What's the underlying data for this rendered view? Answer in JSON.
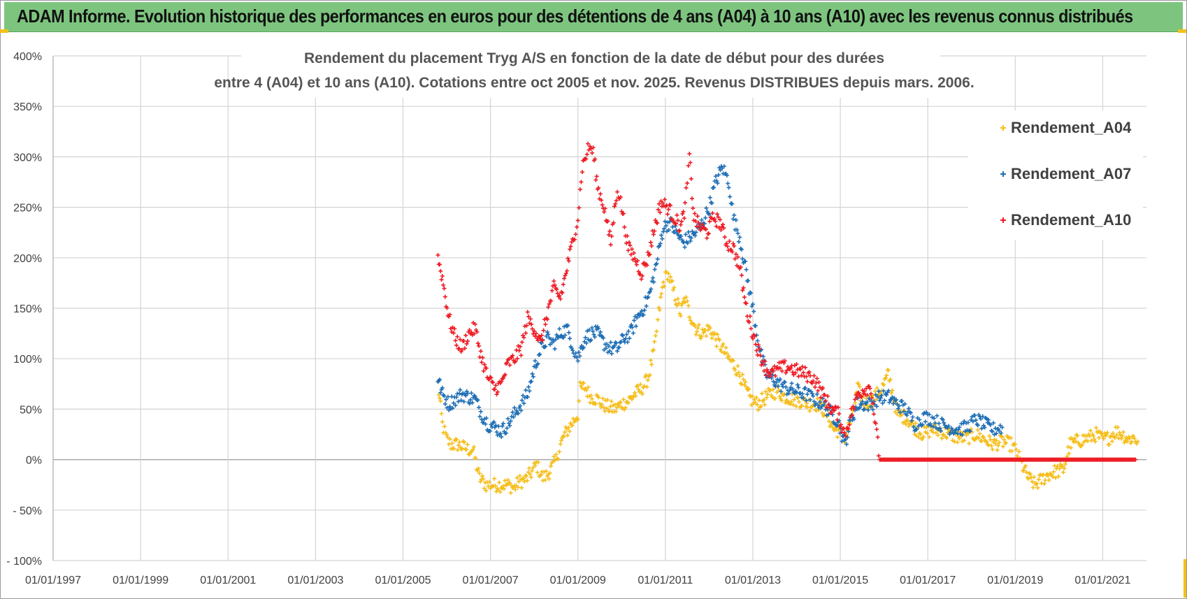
{
  "banner": {
    "title": "ADAM Informe. Evolution historique des performances en euros pour des détentions de 4 ans (A04) à 10 ans (A10) avec les revenus connus distribués"
  },
  "chart_data": {
    "type": "scatter",
    "title_line1": "Rendement du placement Tryg A/S en fonction de la date de début pour des durées",
    "title_line2": "entre 4 (A04) et 10 ans (A10). Cotations entre oct 2005 et nov. 2025. Revenus DISTRIBUES depuis mars. 2006.",
    "xlabel": "",
    "ylabel": "",
    "xlim": [
      1997.0,
      2022.0
    ],
    "ylim": [
      -100,
      400
    ],
    "x_ticks": [
      {
        "value": 1997,
        "label": "01/01/1997"
      },
      {
        "value": 1999,
        "label": "01/01/1999"
      },
      {
        "value": 2001,
        "label": "01/01/2001"
      },
      {
        "value": 2003,
        "label": "01/01/2003"
      },
      {
        "value": 2005,
        "label": "01/01/2005"
      },
      {
        "value": 2007,
        "label": "01/01/2007"
      },
      {
        "value": 2009,
        "label": "01/01/2009"
      },
      {
        "value": 2011,
        "label": "01/01/2011"
      },
      {
        "value": 2013,
        "label": "01/01/2013"
      },
      {
        "value": 2015,
        "label": "01/01/2015"
      },
      {
        "value": 2017,
        "label": "01/01/2017"
      },
      {
        "value": 2019,
        "label": "01/01/2019"
      },
      {
        "value": 2021,
        "label": "01/01/2021"
      }
    ],
    "y_ticks": [
      {
        "value": 400,
        "label": "400%"
      },
      {
        "value": 350,
        "label": "350%"
      },
      {
        "value": 300,
        "label": "300%"
      },
      {
        "value": 250,
        "label": "250%"
      },
      {
        "value": 200,
        "label": "200%"
      },
      {
        "value": 150,
        "label": "150%"
      },
      {
        "value": 100,
        "label": "100%"
      },
      {
        "value": 50,
        "label": "50%"
      },
      {
        "value": 0,
        "label": "0%"
      },
      {
        "value": -50,
        "label": "- 50%"
      },
      {
        "value": -100,
        "label": "- 100%"
      }
    ],
    "grid": true,
    "legend_position": "top-right",
    "series": [
      {
        "name": "Rendement_A04",
        "color": "#f5be1b",
        "points": [
          [
            2005.8,
            75
          ],
          [
            2005.9,
            35
          ],
          [
            2006.0,
            20
          ],
          [
            2006.1,
            15
          ],
          [
            2006.25,
            15
          ],
          [
            2006.4,
            12
          ],
          [
            2006.5,
            10
          ],
          [
            2006.6,
            10
          ],
          [
            2006.75,
            -18
          ],
          [
            2006.9,
            -25
          ],
          [
            2007.0,
            -25
          ],
          [
            2007.2,
            -25
          ],
          [
            2007.4,
            -25
          ],
          [
            2007.55,
            -28
          ],
          [
            2007.65,
            -22
          ],
          [
            2007.8,
            -20
          ],
          [
            2007.95,
            -12
          ],
          [
            2008.05,
            -5
          ],
          [
            2008.2,
            -18
          ],
          [
            2008.3,
            -15
          ],
          [
            2008.4,
            -8
          ],
          [
            2008.5,
            0
          ],
          [
            2008.6,
            15
          ],
          [
            2008.7,
            25
          ],
          [
            2008.85,
            35
          ],
          [
            2009.0,
            45
          ],
          [
            2009.05,
            70
          ],
          [
            2009.15,
            72
          ],
          [
            2009.3,
            62
          ],
          [
            2009.45,
            60
          ],
          [
            2009.55,
            55
          ],
          [
            2009.7,
            52
          ],
          [
            2009.85,
            50
          ],
          [
            2010.0,
            55
          ],
          [
            2010.15,
            58
          ],
          [
            2010.3,
            65
          ],
          [
            2010.45,
            70
          ],
          [
            2010.6,
            80
          ],
          [
            2010.75,
            110
          ],
          [
            2010.85,
            145
          ],
          [
            2010.95,
            175
          ],
          [
            2011.05,
            185
          ],
          [
            2011.2,
            165
          ],
          [
            2011.35,
            145
          ],
          [
            2011.45,
            160
          ],
          [
            2011.55,
            145
          ],
          [
            2011.7,
            130
          ],
          [
            2011.85,
            125
          ],
          [
            2012.0,
            130
          ],
          [
            2012.15,
            120
          ],
          [
            2012.3,
            110
          ],
          [
            2012.45,
            100
          ],
          [
            2012.55,
            95
          ],
          [
            2012.7,
            85
          ],
          [
            2012.85,
            68
          ],
          [
            2012.95,
            60
          ],
          [
            2013.1,
            55
          ],
          [
            2013.25,
            60
          ],
          [
            2013.4,
            65
          ],
          [
            2013.55,
            68
          ],
          [
            2013.7,
            63
          ],
          [
            2013.9,
            60
          ],
          [
            2014.1,
            58
          ],
          [
            2014.3,
            55
          ],
          [
            2014.5,
            55
          ],
          [
            2014.7,
            45
          ],
          [
            2014.85,
            30
          ],
          [
            2015.0,
            28
          ],
          [
            2015.1,
            22
          ],
          [
            2015.25,
            40
          ],
          [
            2015.4,
            70
          ],
          [
            2015.55,
            55
          ],
          [
            2015.75,
            60
          ],
          [
            2015.95,
            70
          ],
          [
            2016.1,
            85
          ],
          [
            2016.3,
            45
          ],
          [
            2016.5,
            42
          ],
          [
            2016.7,
            32
          ],
          [
            2016.9,
            25
          ],
          [
            2017.1,
            30
          ],
          [
            2017.3,
            28
          ],
          [
            2017.5,
            25
          ],
          [
            2017.7,
            22
          ],
          [
            2017.9,
            22
          ],
          [
            2018.1,
            25
          ],
          [
            2018.3,
            20
          ],
          [
            2018.5,
            15
          ],
          [
            2018.7,
            18
          ],
          [
            2018.9,
            15
          ],
          [
            2019.0,
            10
          ],
          [
            2019.15,
            -5
          ],
          [
            2019.3,
            -18
          ],
          [
            2019.45,
            -25
          ],
          [
            2019.6,
            -20
          ],
          [
            2019.75,
            -15
          ],
          [
            2019.9,
            -12
          ],
          [
            2020.1,
            -10
          ],
          [
            2020.25,
            15
          ],
          [
            2020.4,
            18
          ],
          [
            2020.55,
            20
          ],
          [
            2020.7,
            22
          ],
          [
            2020.85,
            25
          ],
          [
            2021.0,
            20
          ],
          [
            2021.15,
            22
          ],
          [
            2021.3,
            28
          ],
          [
            2021.45,
            25
          ],
          [
            2021.6,
            20
          ],
          [
            2021.7,
            22
          ],
          [
            2021.8,
            18
          ]
        ]
      },
      {
        "name": "Rendement_A07",
        "color": "#1f6fb5",
        "points": [
          [
            2005.8,
            80
          ],
          [
            2005.9,
            65
          ],
          [
            2006.05,
            55
          ],
          [
            2006.2,
            60
          ],
          [
            2006.35,
            65
          ],
          [
            2006.5,
            62
          ],
          [
            2006.65,
            60
          ],
          [
            2006.8,
            45
          ],
          [
            2006.95,
            35
          ],
          [
            2007.1,
            32
          ],
          [
            2007.25,
            28
          ],
          [
            2007.4,
            35
          ],
          [
            2007.55,
            45
          ],
          [
            2007.7,
            55
          ],
          [
            2007.85,
            65
          ],
          [
            2008.0,
            90
          ],
          [
            2008.15,
            110
          ],
          [
            2008.3,
            120
          ],
          [
            2008.45,
            115
          ],
          [
            2008.6,
            125
          ],
          [
            2008.75,
            130
          ],
          [
            2008.9,
            110
          ],
          [
            2009.0,
            100
          ],
          [
            2009.15,
            120
          ],
          [
            2009.3,
            125
          ],
          [
            2009.45,
            125
          ],
          [
            2009.6,
            115
          ],
          [
            2009.75,
            110
          ],
          [
            2009.9,
            110
          ],
          [
            2010.05,
            120
          ],
          [
            2010.2,
            125
          ],
          [
            2010.35,
            140
          ],
          [
            2010.5,
            150
          ],
          [
            2010.65,
            165
          ],
          [
            2010.8,
            195
          ],
          [
            2010.95,
            230
          ],
          [
            2011.1,
            235
          ],
          [
            2011.25,
            225
          ],
          [
            2011.4,
            215
          ],
          [
            2011.55,
            220
          ],
          [
            2011.7,
            225
          ],
          [
            2011.85,
            235
          ],
          [
            2012.0,
            250
          ],
          [
            2012.15,
            275
          ],
          [
            2012.3,
            290
          ],
          [
            2012.45,
            275
          ],
          [
            2012.55,
            240
          ],
          [
            2012.7,
            220
          ],
          [
            2012.85,
            185
          ],
          [
            2013.0,
            150
          ],
          [
            2013.15,
            110
          ],
          [
            2013.3,
            85
          ],
          [
            2013.45,
            80
          ],
          [
            2013.6,
            75
          ],
          [
            2013.8,
            70
          ],
          [
            2014.0,
            68
          ],
          [
            2014.2,
            65
          ],
          [
            2014.4,
            60
          ],
          [
            2014.6,
            55
          ],
          [
            2014.8,
            45
          ],
          [
            2014.95,
            38
          ],
          [
            2015.1,
            15
          ],
          [
            2015.25,
            40
          ],
          [
            2015.4,
            55
          ],
          [
            2015.55,
            55
          ],
          [
            2015.7,
            55
          ],
          [
            2015.9,
            62
          ],
          [
            2016.1,
            62
          ],
          [
            2016.3,
            55
          ],
          [
            2016.5,
            50
          ],
          [
            2016.7,
            35
          ],
          [
            2016.9,
            42
          ],
          [
            2017.1,
            40
          ],
          [
            2017.3,
            35
          ],
          [
            2017.5,
            32
          ],
          [
            2017.7,
            30
          ],
          [
            2017.9,
            32
          ],
          [
            2018.1,
            40
          ],
          [
            2018.3,
            35
          ],
          [
            2018.5,
            30
          ],
          [
            2018.7,
            32
          ]
        ]
      },
      {
        "name": "Rendement_A10",
        "color": "#ee1c25",
        "points": [
          [
            2005.8,
            200
          ],
          [
            2005.9,
            180
          ],
          [
            2006.05,
            140
          ],
          [
            2006.2,
            120
          ],
          [
            2006.35,
            110
          ],
          [
            2006.5,
            125
          ],
          [
            2006.65,
            130
          ],
          [
            2006.8,
            100
          ],
          [
            2006.95,
            80
          ],
          [
            2007.1,
            70
          ],
          [
            2007.25,
            75
          ],
          [
            2007.4,
            95
          ],
          [
            2007.55,
            100
          ],
          [
            2007.7,
            110
          ],
          [
            2007.85,
            140
          ],
          [
            2008.0,
            130
          ],
          [
            2008.15,
            115
          ],
          [
            2008.3,
            145
          ],
          [
            2008.45,
            170
          ],
          [
            2008.6,
            160
          ],
          [
            2008.75,
            190
          ],
          [
            2008.9,
            220
          ],
          [
            2009.0,
            240
          ],
          [
            2009.1,
            290
          ],
          [
            2009.25,
            310
          ],
          [
            2009.35,
            305
          ],
          [
            2009.45,
            270
          ],
          [
            2009.6,
            250
          ],
          [
            2009.75,
            215
          ],
          [
            2009.9,
            270
          ],
          [
            2010.0,
            250
          ],
          [
            2010.15,
            210
          ],
          [
            2010.3,
            200
          ],
          [
            2010.45,
            185
          ],
          [
            2010.6,
            200
          ],
          [
            2010.75,
            230
          ],
          [
            2010.9,
            255
          ],
          [
            2011.05,
            250
          ],
          [
            2011.2,
            240
          ],
          [
            2011.35,
            230
          ],
          [
            2011.45,
            250
          ],
          [
            2011.55,
            300
          ],
          [
            2011.65,
            240
          ],
          [
            2011.8,
            230
          ],
          [
            2011.95,
            225
          ],
          [
            2012.1,
            240
          ],
          [
            2012.25,
            235
          ],
          [
            2012.4,
            215
          ],
          [
            2012.55,
            210
          ],
          [
            2012.7,
            190
          ],
          [
            2012.85,
            150
          ],
          [
            2013.0,
            125
          ],
          [
            2013.15,
            105
          ],
          [
            2013.3,
            90
          ],
          [
            2013.45,
            85
          ],
          [
            2013.6,
            90
          ],
          [
            2013.8,
            92
          ],
          [
            2014.0,
            88
          ],
          [
            2014.2,
            85
          ],
          [
            2014.4,
            80
          ],
          [
            2014.6,
            65
          ],
          [
            2014.8,
            50
          ],
          [
            2014.95,
            45
          ],
          [
            2015.1,
            25
          ],
          [
            2015.25,
            45
          ],
          [
            2015.4,
            65
          ],
          [
            2015.55,
            70
          ],
          [
            2015.7,
            72
          ],
          [
            2015.9,
            0
          ],
          [
            2016.5,
            0
          ],
          [
            2017.0,
            0
          ],
          [
            2017.5,
            0
          ],
          [
            2018.0,
            0
          ],
          [
            2018.5,
            0
          ],
          [
            2019.0,
            0
          ],
          [
            2019.5,
            0
          ],
          [
            2020.0,
            0
          ],
          [
            2020.5,
            0
          ],
          [
            2021.0,
            0
          ],
          [
            2021.5,
            0
          ],
          [
            2021.75,
            0
          ]
        ]
      }
    ]
  }
}
